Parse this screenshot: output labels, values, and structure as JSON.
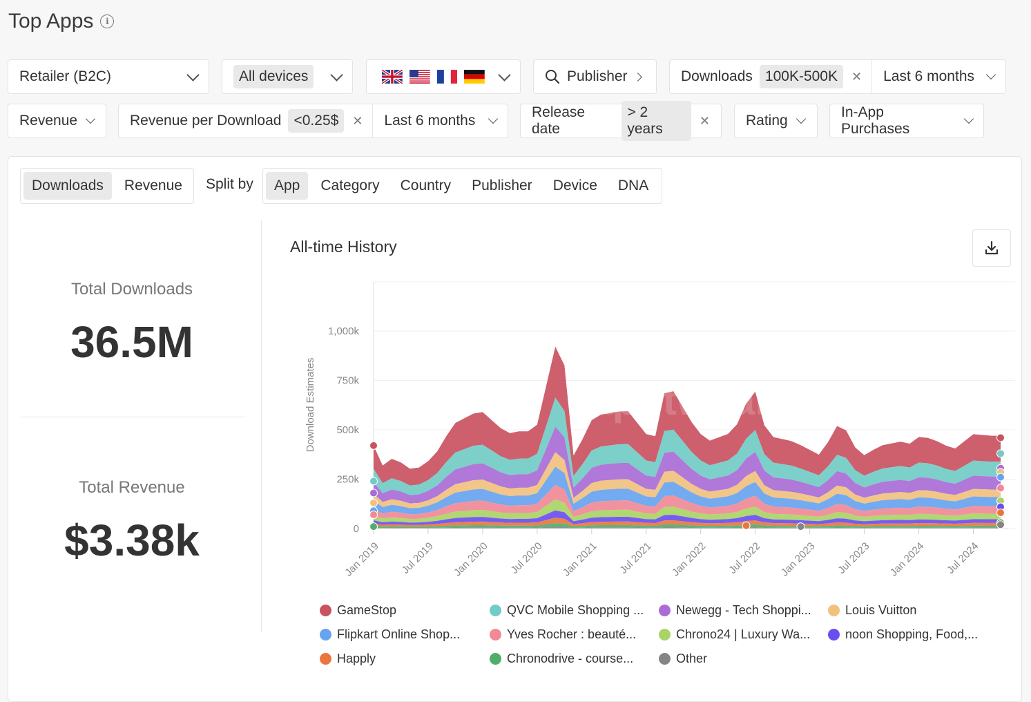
{
  "page": {
    "title": "Top Apps"
  },
  "filters": {
    "category": "Retailer (B2C)",
    "devices": "All devices",
    "publisher": "Publisher",
    "downloads": {
      "label": "Downloads",
      "value": "100K-500K",
      "period": "Last 6 months"
    },
    "revenue": "Revenue",
    "revenue_per_download": {
      "label": "Revenue per Download",
      "value": "<0.25$",
      "period": "Last 6 months"
    },
    "release_date": {
      "label": "Release date",
      "value": "> 2 years"
    },
    "rating": "Rating",
    "in_app_purchases": "In-App Purchases",
    "countries": [
      "uk-flag",
      "us-flag",
      "fr-flag",
      "de-flag"
    ]
  },
  "metric_tabs": [
    "Downloads",
    "Revenue"
  ],
  "metric_active": "Downloads",
  "split": {
    "label": "Split by",
    "options": [
      "App",
      "Category",
      "Country",
      "Publisher",
      "Device",
      "DNA"
    ],
    "active": "App"
  },
  "kpis": {
    "downloads_label": "Total Downloads",
    "downloads_value": "36.5M",
    "revenue_label": "Total Revenue",
    "revenue_value": "$3.38k"
  },
  "chart_title": "All-time History",
  "chart_data": {
    "type": "area",
    "stacked": true,
    "ylabel": "Download Estimates",
    "ylim": [
      0,
      1000000
    ],
    "yticks": [
      "0",
      "250k",
      "500k",
      "750k",
      "1,000k"
    ],
    "x_labels": [
      "Jan 2019",
      "Jul 2019",
      "Jan 2020",
      "Jul 2020",
      "Jan 2021",
      "Jul 2021",
      "Jan 2022",
      "Jul 2022",
      "Jan 2023",
      "Jul 2023",
      "Jan 2024",
      "Jul 2024"
    ],
    "x_start": "2019-01",
    "x_end": "2024-10",
    "total_keyframes": [
      [
        0,
        420000
      ],
      [
        1,
        310000
      ],
      [
        3,
        360000
      ],
      [
        6,
        290000
      ],
      [
        9,
        360000
      ],
      [
        12,
        530000
      ],
      [
        16,
        600000
      ],
      [
        20,
        480000
      ],
      [
        23,
        500000
      ],
      [
        24,
        450000
      ],
      [
        28,
        1030000
      ],
      [
        30,
        360000
      ],
      [
        33,
        570000
      ],
      [
        38,
        600000
      ],
      [
        42,
        430000
      ],
      [
        44,
        750000
      ],
      [
        48,
        520000
      ],
      [
        50,
        440000
      ],
      [
        54,
        490000
      ],
      [
        57,
        720000
      ],
      [
        59,
        470000
      ],
      [
        63,
        440000
      ],
      [
        67,
        370000
      ],
      [
        70,
        550000
      ],
      [
        73,
        360000
      ],
      [
        76,
        420000
      ],
      [
        79,
        440000
      ],
      [
        80,
        420000
      ],
      [
        82,
        470000
      ],
      [
        84,
        450000
      ],
      [
        87,
        400000
      ],
      [
        90,
        480000
      ],
      [
        92,
        470000
      ],
      [
        94,
        470000
      ]
    ],
    "series": [
      {
        "name": "GameStop",
        "color": "#c9525f",
        "share": 0.28,
        "markers": [
          [
            0,
            420000
          ],
          [
            69,
            460000
          ]
        ]
      },
      {
        "name": "QVC Mobile Shopping ...",
        "color": "#72cbc6",
        "share": 0.16,
        "markers": [
          [
            0,
            240000
          ],
          [
            69,
            380000
          ]
        ]
      },
      {
        "name": "Newegg - Tech Shoppi...",
        "color": "#a86dd6",
        "share": 0.14,
        "markers": [
          [
            0,
            180000
          ],
          [
            69,
            305000
          ]
        ]
      },
      {
        "name": "Louis Vuitton",
        "color": "#f1c17f",
        "share": 0.08,
        "markers": [
          [
            0,
            130000
          ],
          [
            69,
            285000
          ]
        ]
      },
      {
        "name": "Flipkart Online Shop...",
        "color": "#67a3ef",
        "share": 0.1,
        "markers": [
          [
            0,
            90000
          ],
          [
            69,
            260000
          ]
        ]
      },
      {
        "name": "Yves Rocher : beauté...",
        "color": "#f08a96",
        "share": 0.08,
        "markers": [
          [
            0,
            70000
          ],
          [
            69,
            205000
          ]
        ]
      },
      {
        "name": "Chrono24 | Luxury Wa...",
        "color": "#a9d466",
        "share": 0.06,
        "markers": [
          [
            69,
            140000
          ]
        ]
      },
      {
        "name": "noon Shopping, Food,...",
        "color": "#6a4ff0",
        "share": 0.04,
        "markers": [
          [
            69,
            110000
          ]
        ]
      },
      {
        "name": "Happly",
        "color": "#e9763f",
        "share": 0.03,
        "markers": [
          [
            41,
            15000
          ],
          [
            69,
            80000
          ]
        ]
      },
      {
        "name": "Chronodrive - course...",
        "color": "#4fae6a",
        "share": 0.02,
        "markers": [
          [
            0,
            10000
          ],
          [
            69,
            30000
          ]
        ]
      },
      {
        "name": "Other",
        "color": "#858585",
        "share": 0.01,
        "markers": [
          [
            47,
            10000
          ],
          [
            69,
            20000
          ]
        ]
      }
    ]
  },
  "watermark": "apptweak"
}
